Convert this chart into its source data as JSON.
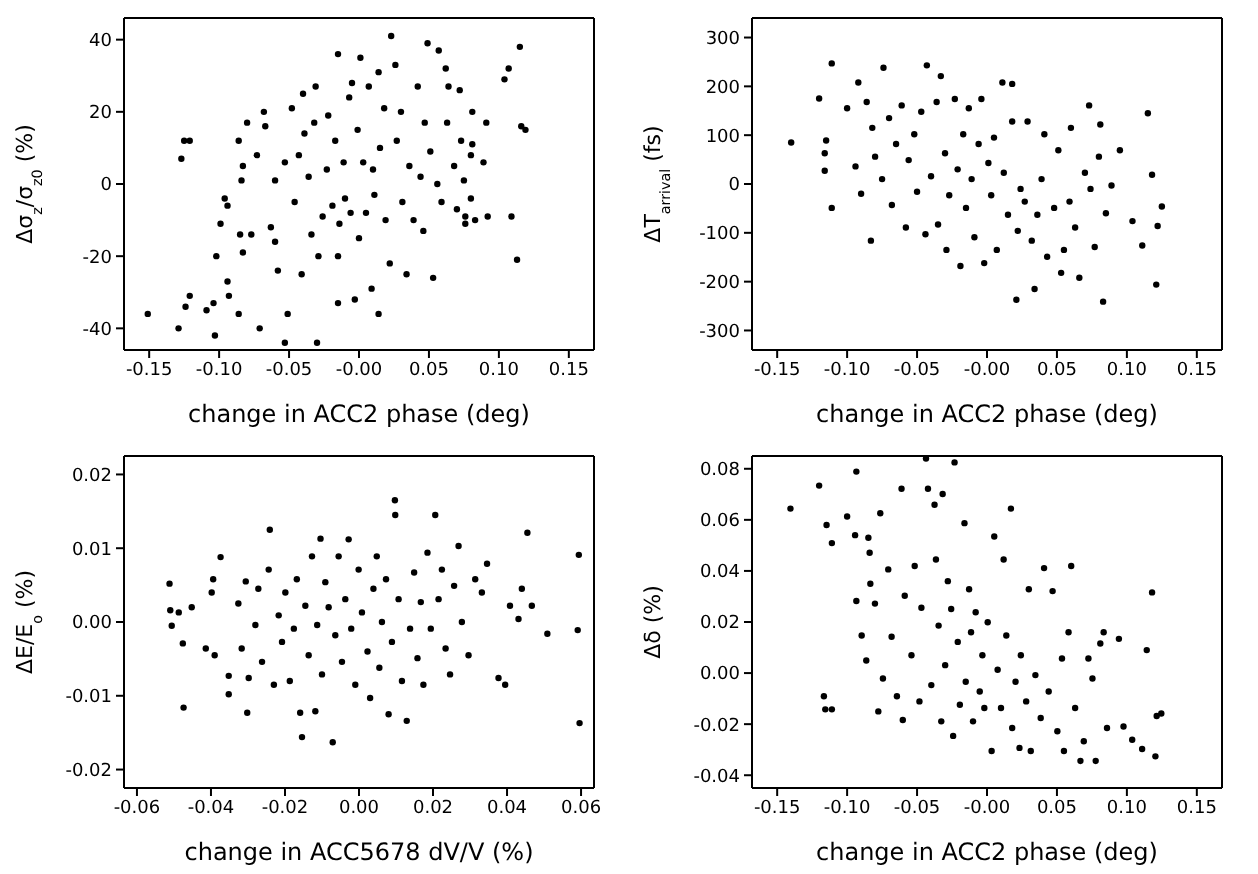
{
  "chart_data": [
    {
      "type": "scatter",
      "xlabel": "change in ACC2 phase (deg)",
      "ylabel": "Δσ$_{z}$/σ$_{z0}$ (%)",
      "marker": "circle",
      "color": "#000000",
      "xlim": [
        -0.168,
        0.168
      ],
      "xticks": [
        -0.15,
        {
          "value": -0.1,
          "label": "-0.10"
        },
        -0.05,
        {
          "value": 0,
          "label": "-0.00"
        },
        0.05,
        {
          "value": 0.1,
          "label": "0.10"
        },
        0.15
      ],
      "ylim": [
        -46,
        46
      ],
      "yticks": [
        -40,
        -20,
        0,
        20,
        40
      ],
      "x": [
        -0.151,
        -0.129,
        -0.127,
        -0.125,
        -0.121,
        -0.124,
        -0.121,
        -0.109,
        -0.104,
        -0.102,
        -0.103,
        -0.099,
        -0.094,
        -0.096,
        -0.094,
        -0.093,
        -0.086,
        -0.084,
        -0.083,
        -0.085,
        -0.083,
        -0.086,
        -0.08,
        -0.077,
        -0.073,
        -0.071,
        -0.068,
        -0.067,
        -0.063,
        -0.06,
        -0.06,
        -0.058,
        -0.053,
        -0.051,
        -0.053,
        -0.048,
        -0.046,
        -0.043,
        -0.041,
        -0.04,
        -0.039,
        -0.036,
        -0.034,
        -0.032,
        -0.031,
        -0.03,
        -0.029,
        -0.026,
        -0.023,
        -0.022,
        -0.019,
        -0.017,
        -0.015,
        -0.015,
        -0.015,
        -0.014,
        -0.011,
        -0.01,
        -0.007,
        -0.006,
        -0.005,
        -0.003,
        -0.001,
        0,
        0.001,
        0.003,
        0.005,
        0.007,
        0.009,
        0.01,
        0.011,
        0.014,
        0.014,
        0.015,
        0.018,
        0.019,
        0.022,
        0.023,
        0.026,
        0.027,
        0.03,
        0.031,
        0.034,
        0.036,
        0.039,
        0.042,
        0.044,
        0.046,
        0.047,
        0.049,
        0.051,
        0.053,
        0.056,
        0.057,
        0.059,
        0.062,
        0.063,
        0.064,
        0.068,
        0.07,
        0.072,
        0.073,
        0.075,
        0.076,
        0.08,
        0.081,
        0.076,
        0.08,
        0.083,
        0.081,
        0.089,
        0.091,
        0.092,
        0.104,
        0.107,
        0.109,
        0.113,
        0.115,
        0.116,
        0.119
      ],
      "values": [
        -36,
        -40,
        7,
        12,
        12,
        -34,
        -31,
        -35,
        -33,
        -20,
        -42,
        -11,
        -6,
        -4,
        -27,
        -31,
        12,
        1,
        5,
        -14,
        -19,
        -36,
        17,
        -14,
        8,
        -40,
        20,
        16,
        -12,
        -16,
        1,
        -24,
        6,
        -36,
        -44,
        21,
        -5,
        8,
        -25,
        25,
        14,
        2,
        -14,
        17,
        27,
        -44,
        -20,
        -9,
        4,
        19,
        -6,
        12,
        36,
        -33,
        -20,
        -11,
        6,
        -4,
        24,
        -8,
        28,
        -32,
        15,
        -15,
        35,
        6,
        -8,
        27,
        -29,
        4,
        -3,
        -36,
        31,
        10,
        21,
        -10,
        -22,
        41,
        33,
        12,
        20,
        -5,
        -25,
        5,
        -10,
        27,
        2,
        -13,
        17,
        39,
        9,
        -26,
        0,
        37,
        -5,
        32,
        17,
        27,
        5,
        -7,
        26,
        12,
        1,
        -9,
        8,
        20,
        -11,
        -4,
        -10,
        11,
        6,
        17,
        -9,
        29,
        32,
        -9,
        -21,
        38,
        16,
        15
      ]
    },
    {
      "type": "scatter",
      "xlabel": "change in ACC2 phase (deg)",
      "ylabel": "ΔT$_{arrival}$ (fs)",
      "marker": "circle",
      "color": "#000000",
      "xlim": [
        -0.168,
        0.168
      ],
      "xticks": [
        -0.15,
        {
          "value": -0.1,
          "label": "-0.10"
        },
        -0.05,
        {
          "value": 0,
          "label": "-0.00"
        },
        0.05,
        {
          "value": 0.1,
          "label": "0.10"
        },
        0.15
      ],
      "ylim": [
        -340,
        340
      ],
      "yticks": [
        -300,
        -200,
        -100,
        0,
        100,
        200,
        300
      ],
      "x": [
        -0.14,
        -0.12,
        -0.116,
        -0.115,
        -0.116,
        -0.111,
        -0.111,
        -0.1,
        -0.094,
        -0.092,
        -0.09,
        -0.086,
        -0.083,
        -0.082,
        -0.08,
        -0.074,
        -0.075,
        -0.07,
        -0.068,
        -0.065,
        -0.061,
        -0.058,
        -0.056,
        -0.052,
        -0.05,
        -0.047,
        -0.044,
        -0.043,
        -0.04,
        -0.036,
        -0.035,
        -0.033,
        -0.03,
        -0.029,
        -0.027,
        -0.023,
        -0.021,
        -0.019,
        -0.017,
        -0.015,
        -0.013,
        -0.011,
        -0.009,
        -0.006,
        -0.004,
        -0.002,
        0.001,
        0.003,
        0.005,
        0.007,
        0.011,
        0.012,
        0.015,
        0.018,
        0.018,
        0.021,
        0.022,
        0.024,
        0.027,
        0.029,
        0.032,
        0.034,
        0.036,
        0.039,
        0.041,
        0.043,
        0.048,
        0.051,
        0.053,
        0.055,
        0.059,
        0.06,
        0.063,
        0.066,
        0.07,
        0.073,
        0.074,
        0.077,
        0.08,
        0.081,
        0.083,
        0.085,
        0.089,
        0.095,
        0.104,
        0.111,
        0.115,
        0.118,
        0.121,
        0.122,
        0.125
      ],
      "values": [
        85,
        175,
        63,
        89,
        27,
        247,
        -49,
        155,
        36,
        208,
        -20,
        168,
        -116,
        115,
        56,
        238,
        10,
        135,
        -43,
        82,
        161,
        -89,
        49,
        102,
        -16,
        148,
        -103,
        243,
        16,
        168,
        -83,
        221,
        63,
        -135,
        -23,
        174,
        30,
        -168,
        102,
        -49,
        155,
        10,
        -109,
        82,
        174,
        -162,
        43,
        -23,
        95,
        -135,
        208,
        23,
        -63,
        205,
        128,
        -237,
        -96,
        -10,
        -36,
        128,
        -116,
        -215,
        -63,
        10,
        102,
        -149,
        -49,
        69,
        -182,
        -135,
        -36,
        115,
        -89,
        -192,
        23,
        161,
        -10,
        -129,
        56,
        122,
        -241,
        -60,
        -3,
        69,
        -76,
        -126,
        145,
        19,
        -206,
        -86,
        -46
      ]
    },
    {
      "type": "scatter",
      "xlabel": "change in ACC5678 dV/V (%)",
      "ylabel": "ΔE/E$_{o}$ (%)",
      "marker": "circle",
      "color": "#000000",
      "xlim": [
        -0.0635,
        0.0635
      ],
      "xticks": [
        -0.06,
        -0.04,
        -0.02,
        {
          "value": 0,
          "label": "0.00"
        },
        0.02,
        0.04,
        0.06
      ],
      "ylim": [
        -0.0225,
        0.0225
      ],
      "yticks": [
        -0.02,
        -0.01,
        {
          "value": 0,
          "label": "0.00"
        },
        0.01,
        0.02
      ],
      "x": [
        -0.0512,
        -0.051,
        -0.0506,
        -0.0487,
        -0.0476,
        -0.0474,
        -0.0452,
        -0.0414,
        -0.0398,
        -0.0394,
        -0.039,
        -0.0374,
        -0.0352,
        -0.0352,
        -0.0326,
        -0.0317,
        -0.0306,
        -0.0302,
        -0.0298,
        -0.028,
        -0.0272,
        -0.0262,
        -0.0244,
        -0.0241,
        -0.023,
        -0.0217,
        -0.0208,
        -0.0199,
        -0.0187,
        -0.0176,
        -0.0168,
        -0.0159,
        -0.0154,
        -0.0145,
        -0.0136,
        -0.0127,
        -0.0118,
        -0.0113,
        -0.0104,
        -0.01,
        -0.0091,
        -0.0082,
        -0.0071,
        -0.0064,
        -0.0055,
        -0.0046,
        -0.0037,
        -0.0028,
        -0.0021,
        -0.001,
        -0.0001,
        0.0008,
        0.0023,
        0.003,
        0.0039,
        0.0048,
        0.0055,
        0.0062,
        0.0073,
        0.008,
        0.0089,
        0.0097,
        0.0098,
        0.0107,
        0.0116,
        0.0129,
        0.0138,
        0.0149,
        0.0158,
        0.0167,
        0.0174,
        0.0185,
        0.0194,
        0.0206,
        0.0215,
        0.0224,
        0.0234,
        0.0246,
        0.0257,
        0.0269,
        0.0278,
        0.0296,
        0.0314,
        0.0332,
        0.0346,
        0.0377,
        0.0395,
        0.0408,
        0.0431,
        0.044,
        0.0455,
        0.0467,
        0.0509,
        0.0594,
        0.0591,
        0.0596
      ],
      "values": [
        0.0052,
        0.0016,
        -0.0005,
        0.0013,
        -0.0029,
        -0.0116,
        0.002,
        -0.0036,
        0.004,
        0.0058,
        -0.0045,
        0.0088,
        -0.0073,
        -0.0098,
        0.0025,
        -0.0036,
        0.0055,
        -0.0123,
        -0.0076,
        -0.0004,
        0.0045,
        -0.0054,
        0.0071,
        0.0125,
        -0.0085,
        0.0009,
        -0.0027,
        0.004,
        -0.008,
        -0.0009,
        0.0058,
        -0.0123,
        -0.0156,
        0.0022,
        -0.0045,
        0.0089,
        -0.0121,
        -0.0004,
        0.0113,
        -0.0071,
        0.0054,
        0.002,
        -0.0163,
        -0.0018,
        0.0089,
        -0.0054,
        0.0031,
        0.0112,
        -0.0009,
        -0.0085,
        0.0071,
        0.0013,
        -0.004,
        -0.0103,
        0.0045,
        0.0089,
        -0.0062,
        0,
        0.0058,
        -0.0125,
        -0.0027,
        0.0165,
        0.0145,
        0.0031,
        -0.008,
        -0.0134,
        -0.0009,
        0.0067,
        -0.0049,
        0.0027,
        -0.0085,
        0.0094,
        -0.0009,
        0.0145,
        0.0031,
        0.0071,
        -0.0036,
        -0.0071,
        0.0049,
        0.0103,
        0,
        -0.0045,
        0.0058,
        0.004,
        0.0079,
        -0.0076,
        -0.0085,
        0.0022,
        0.0004,
        0.0045,
        0.0121,
        0.0022,
        -0.0016,
        0.0091,
        -0.0011,
        -0.0137
      ]
    },
    {
      "type": "scatter",
      "xlabel": "change in ACC2 phase (deg)",
      "ylabel": "Δδ (%)",
      "marker": "circle",
      "color": "#000000",
      "xlim": [
        -0.168,
        0.168
      ],
      "xticks": [
        -0.15,
        {
          "value": -0.1,
          "label": "-0.10"
        },
        -0.05,
        {
          "value": 0,
          "label": "-0.00"
        },
        0.05,
        {
          "value": 0.1,
          "label": "0.10"
        },
        0.15
      ],
      "ylim": [
        -0.045,
        0.085
      ],
      "yticks": [
        -0.04,
        -0.02,
        {
          "value": 0,
          "label": "0.00"
        },
        0.02,
        0.04,
        0.06,
        0.08
      ],
      "x": [
        -0.1405,
        -0.12,
        -0.1166,
        -0.1156,
        -0.1147,
        -0.1109,
        -0.1109,
        -0.1,
        -0.0943,
        -0.0934,
        -0.0934,
        -0.0896,
        -0.0863,
        -0.0848,
        -0.0839,
        -0.0834,
        -0.0801,
        -0.0777,
        -0.0763,
        -0.0744,
        -0.0706,
        -0.0682,
        -0.0644,
        -0.0611,
        -0.0602,
        -0.0588,
        -0.054,
        -0.0517,
        -0.0483,
        -0.0469,
        -0.0436,
        -0.0422,
        -0.0398,
        -0.0375,
        -0.0365,
        -0.0346,
        -0.0327,
        -0.0317,
        -0.0299,
        -0.028,
        -0.0256,
        -0.0242,
        -0.0232,
        -0.0209,
        -0.0194,
        -0.0161,
        -0.0152,
        -0.0128,
        -0.0114,
        -0.01,
        -0.0081,
        -0.0052,
        -0.0033,
        -0.0019,
        0.0005,
        0.0033,
        0.0052,
        0.0076,
        0.01,
        0.0119,
        0.0138,
        0.0171,
        0.018,
        0.0204,
        0.0232,
        0.0242,
        0.028,
        0.0299,
        0.0313,
        0.0346,
        0.0384,
        0.0408,
        0.0441,
        0.0469,
        0.0503,
        0.0536,
        0.055,
        0.0583,
        0.0602,
        0.063,
        0.0668,
        0.0692,
        0.0725,
        0.0754,
        0.0777,
        0.081,
        0.0834,
        0.0858,
        0.0943,
        0.0976,
        0.1038,
        0.1109,
        0.1142,
        0.118,
        0.1204,
        0.1213,
        0.1246
      ],
      "values": [
        0.0644,
        0.0734,
        -0.0091,
        -0.0142,
        0.058,
        -0.0142,
        0.0509,
        0.0613,
        0.054,
        0.0789,
        0.0282,
        0.0147,
        0.0049,
        0.053,
        0.0471,
        0.035,
        0.0272,
        -0.015,
        0.0626,
        -0.0021,
        0.0406,
        0.0142,
        -0.0091,
        0.0722,
        -0.0184,
        0.0303,
        0.007,
        0.0419,
        -0.0111,
        0.0256,
        0.084,
        0.0722,
        -0.0047,
        0.0659,
        0.0445,
        0.0186,
        -0.0189,
        0.0701,
        0.0031,
        0.036,
        0.0251,
        -0.0246,
        0.0825,
        0.0122,
        -0.0124,
        0.0587,
        -0.0034,
        0.0328,
        0.016,
        -0.0189,
        0.0238,
        -0.0072,
        0.007,
        -0.0137,
        0.0199,
        -0.0305,
        0.0535,
        0.0013,
        -0.0137,
        0.0445,
        0.0147,
        0.0644,
        -0.0215,
        -0.0034,
        -0.0293,
        0.007,
        -0.0111,
        0.0328,
        -0.0305,
        -0.0008,
        -0.0176,
        0.0411,
        -0.0072,
        0.0321,
        -0.0228,
        0.0057,
        -0.0305,
        0.016,
        0.0419,
        -0.0137,
        -0.0344,
        -0.0267,
        0.0057,
        -0.0021,
        -0.0344,
        0.0116,
        0.016,
        -0.0215,
        0.0134,
        -0.0209,
        -0.0261,
        -0.0297,
        0.009,
        0.0316,
        -0.0326,
        -0.0168,
        -0.0158
      ]
    }
  ]
}
